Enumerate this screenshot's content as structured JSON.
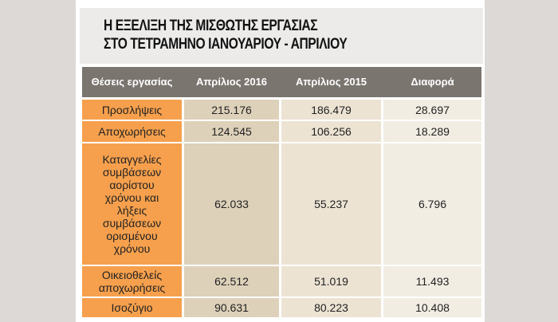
{
  "title": [
    "Η ΕΞΕΛΙΞΗ ΤΗΣ ΜΙΣΘΩΤΗΣ ΕΡΓΑΣΙΑΣ",
    "ΣΤΟ ΤΕΤΡΑΜΗΝΟ ΙΑΝΟΥΑΡΙΟΥ - ΑΠΡΙΛΙΟΥ"
  ],
  "table": {
    "header": [
      "Θέσεις εργασίας",
      "Απρίλιος 2016",
      "Απρίλιος 2015",
      "Διαφορά"
    ],
    "rows": [
      [
        "Προσλήψεις",
        "215.176",
        "186.479",
        "28.697"
      ],
      [
        "Αποχωρήσεις",
        "124.545",
        "106.256",
        "18.289"
      ],
      [
        "Καταγγελίες συμβάσεων αορίστου χρόνου και λήξεις συμβάσεων ορισμένου χρόνου",
        "62.033",
        "55.237",
        "6.796"
      ],
      [
        "Οικειοθελείς αποχωρήσεις",
        "62.512",
        "51.019",
        "11.493"
      ],
      [
        "Ισοζύγιο",
        "90.631",
        "80.223",
        "10.408"
      ]
    ]
  }
}
